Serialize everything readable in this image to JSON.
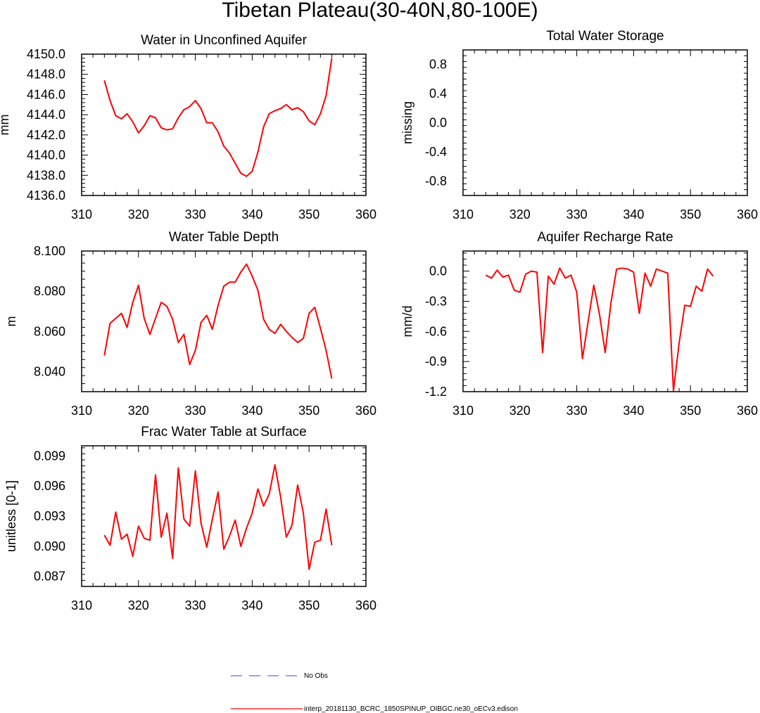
{
  "figure": {
    "title": "Tibetan Plateau(30-40N,80-100E)",
    "legend": [
      {
        "label": "No Obs",
        "color": "#6666ee",
        "style": "dashed"
      },
      {
        "label": "interp_20181130_BCRC_1850SPINUP_OIBGC.ne30_oECv3.edison",
        "color": "#ff0000",
        "style": "solid"
      }
    ]
  },
  "chart_data": [
    {
      "type": "line",
      "title": "Water in Unconfined Aquifer",
      "xlabel": "",
      "ylabel": "mm",
      "xlim": [
        310,
        360
      ],
      "ylim": [
        4136,
        4150
      ],
      "xticks": [
        310,
        320,
        330,
        340,
        350,
        360
      ],
      "xtick_labels": [
        "310",
        "320",
        "330",
        "340",
        "350",
        "360"
      ],
      "yticks": [
        4136,
        4138,
        4140,
        4142,
        4144,
        4146,
        4148,
        4150
      ],
      "ytick_labels": [
        "4136.0",
        "4138.0",
        "4140.0",
        "4142.0",
        "4144.0",
        "4146.0",
        "4148.0",
        "4150.0"
      ],
      "series": [
        {
          "color": "#ff0000",
          "x": [
            314,
            315,
            316,
            317,
            318,
            319,
            320,
            321,
            322,
            323,
            324,
            325,
            326,
            327,
            328,
            329,
            330,
            331,
            332,
            333,
            334,
            335,
            336,
            337,
            338,
            339,
            340,
            341,
            342,
            343,
            344,
            345,
            346,
            347,
            348,
            349,
            350,
            351,
            352,
            353,
            354
          ],
          "y": [
            4147.4,
            4145.4,
            4143.9,
            4143.6,
            4144.1,
            4143.3,
            4142.2,
            4142.9,
            4143.9,
            4143.7,
            4142.7,
            4142.5,
            4142.6,
            4143.7,
            4144.5,
            4144.8,
            4145.4,
            4144.6,
            4143.2,
            4143.2,
            4142.3,
            4140.9,
            4140.2,
            4139.2,
            4138.2,
            4137.9,
            4138.4,
            4140.3,
            4142.8,
            4144.1,
            4144.4,
            4144.6,
            4145.0,
            4144.5,
            4144.7,
            4144.3,
            4143.4,
            4143.0,
            4144.1,
            4145.9,
            4149.6
          ]
        }
      ]
    },
    {
      "type": "line",
      "title": "Total Water Storage",
      "xlabel": "",
      "ylabel": "missing",
      "xlim": [
        310,
        360
      ],
      "ylim": [
        -1,
        1
      ],
      "xticks": [
        310,
        320,
        330,
        340,
        350,
        360
      ],
      "xtick_labels": [
        "310",
        "320",
        "330",
        "340",
        "350",
        "360"
      ],
      "yticks": [
        -0.8,
        -0.4,
        0.0,
        0.4,
        0.8
      ],
      "ytick_labels": [
        "-0.8",
        "-0.4",
        "0.0",
        "0.4",
        "0.8"
      ],
      "series": []
    },
    {
      "type": "line",
      "title": "Water Table Depth",
      "xlabel": "",
      "ylabel": "m",
      "xlim": [
        310,
        360
      ],
      "ylim": [
        8.03,
        8.1
      ],
      "xticks": [
        310,
        320,
        330,
        340,
        350,
        360
      ],
      "xtick_labels": [
        "310",
        "320",
        "330",
        "340",
        "350",
        "360"
      ],
      "yticks": [
        8.04,
        8.06,
        8.08,
        8.1
      ],
      "ytick_labels": [
        "8.040",
        "8.060",
        "8.080",
        "8.100"
      ],
      "series": [
        {
          "color": "#ff0000",
          "x": [
            314,
            315,
            316,
            317,
            318,
            319,
            320,
            321,
            322,
            323,
            324,
            325,
            326,
            327,
            328,
            329,
            330,
            331,
            332,
            333,
            334,
            335,
            336,
            337,
            338,
            339,
            340,
            341,
            342,
            343,
            344,
            345,
            346,
            347,
            348,
            349,
            350,
            351,
            352,
            353,
            354
          ],
          "y": [
            8.048,
            8.064,
            8.0665,
            8.069,
            8.062,
            8.0745,
            8.083,
            8.0665,
            8.0585,
            8.0665,
            8.0745,
            8.0725,
            8.066,
            8.0545,
            8.0585,
            8.0435,
            8.0505,
            8.0645,
            8.068,
            8.061,
            8.073,
            8.0825,
            8.0845,
            8.0845,
            8.0895,
            8.0935,
            8.0875,
            8.0805,
            8.066,
            8.061,
            8.059,
            8.0635,
            8.06,
            8.057,
            8.0545,
            8.0565,
            8.069,
            8.072,
            8.0615,
            8.0505,
            8.0365
          ]
        }
      ]
    },
    {
      "type": "line",
      "title": "Aquifer Recharge Rate",
      "xlabel": "",
      "ylabel": "mm/d",
      "xlim": [
        310,
        360
      ],
      "ylim": [
        -1.2,
        0.2
      ],
      "xticks": [
        310,
        320,
        330,
        340,
        350,
        360
      ],
      "xtick_labels": [
        "310",
        "320",
        "330",
        "340",
        "350",
        "360"
      ],
      "yticks": [
        -1.2,
        -0.9,
        -0.6,
        -0.3,
        0.0
      ],
      "ytick_labels": [
        "-1.2",
        "-0.9",
        "-0.6",
        "-0.3",
        "0.0"
      ],
      "series": [
        {
          "color": "#ff0000",
          "x": [
            314,
            315,
            316,
            317,
            318,
            319,
            320,
            321,
            322,
            323,
            324,
            325,
            326,
            327,
            328,
            329,
            330,
            331,
            332,
            333,
            334,
            335,
            336,
            337,
            338,
            339,
            340,
            341,
            342,
            343,
            344,
            345,
            346,
            347,
            348,
            349,
            350,
            351,
            352,
            353,
            354
          ],
          "y": [
            -0.04,
            -0.07,
            0.01,
            -0.06,
            -0.04,
            -0.19,
            -0.21,
            -0.03,
            0.0,
            -0.01,
            -0.81,
            -0.05,
            -0.13,
            0.03,
            -0.07,
            -0.04,
            -0.21,
            -0.87,
            -0.5,
            -0.14,
            -0.43,
            -0.81,
            -0.32,
            0.02,
            0.03,
            0.02,
            -0.01,
            -0.42,
            -0.02,
            -0.15,
            0.02,
            0.0,
            -0.02,
            -1.19,
            -0.72,
            -0.34,
            -0.35,
            -0.15,
            -0.2,
            0.02,
            -0.05
          ]
        }
      ]
    },
    {
      "type": "line",
      "title": "Frac Water Table at Surface",
      "xlabel": "",
      "ylabel": "unitless [0-1]",
      "xlim": [
        310,
        360
      ],
      "ylim": [
        0.086,
        0.1
      ],
      "xticks": [
        310,
        320,
        330,
        340,
        350,
        360
      ],
      "xtick_labels": [
        "310",
        "320",
        "330",
        "340",
        "350",
        "360"
      ],
      "yticks": [
        0.087,
        0.09,
        0.093,
        0.096,
        0.099
      ],
      "ytick_labels": [
        "0.087",
        "0.090",
        "0.093",
        "0.096",
        "0.099"
      ],
      "series": [
        {
          "color": "#ff0000",
          "x": [
            314,
            315,
            316,
            317,
            318,
            319,
            320,
            321,
            322,
            323,
            324,
            325,
            326,
            327,
            328,
            329,
            330,
            331,
            332,
            333,
            334,
            335,
            336,
            337,
            338,
            339,
            340,
            341,
            342,
            343,
            344,
            345,
            346,
            347,
            348,
            349,
            350,
            351,
            352,
            353,
            354
          ],
          "y": [
            0.0911,
            0.0901,
            0.0934,
            0.0907,
            0.0912,
            0.089,
            0.092,
            0.0908,
            0.0906,
            0.0971,
            0.0909,
            0.0933,
            0.0888,
            0.0978,
            0.0927,
            0.092,
            0.0975,
            0.0923,
            0.0899,
            0.0927,
            0.0954,
            0.0897,
            0.091,
            0.0926,
            0.09,
            0.0918,
            0.0933,
            0.0957,
            0.094,
            0.0952,
            0.0981,
            0.0949,
            0.0909,
            0.0921,
            0.0961,
            0.0933,
            0.0877,
            0.0904,
            0.0906,
            0.0937,
            0.0901
          ]
        }
      ]
    }
  ]
}
